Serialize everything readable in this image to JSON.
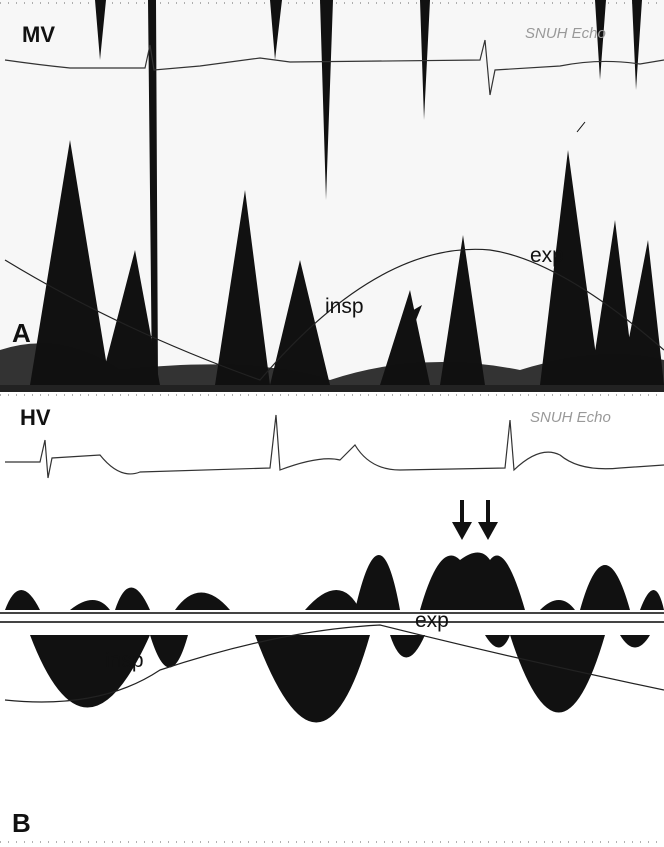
{
  "panels": [
    {
      "label": "A",
      "title": "MV",
      "watermark": "SNUH Echo",
      "annotations": [
        "insp",
        "exp"
      ]
    },
    {
      "label": "B",
      "title": "HV",
      "watermark": "SNUH Echo",
      "annotations": [
        "insp",
        "exp"
      ]
    }
  ]
}
